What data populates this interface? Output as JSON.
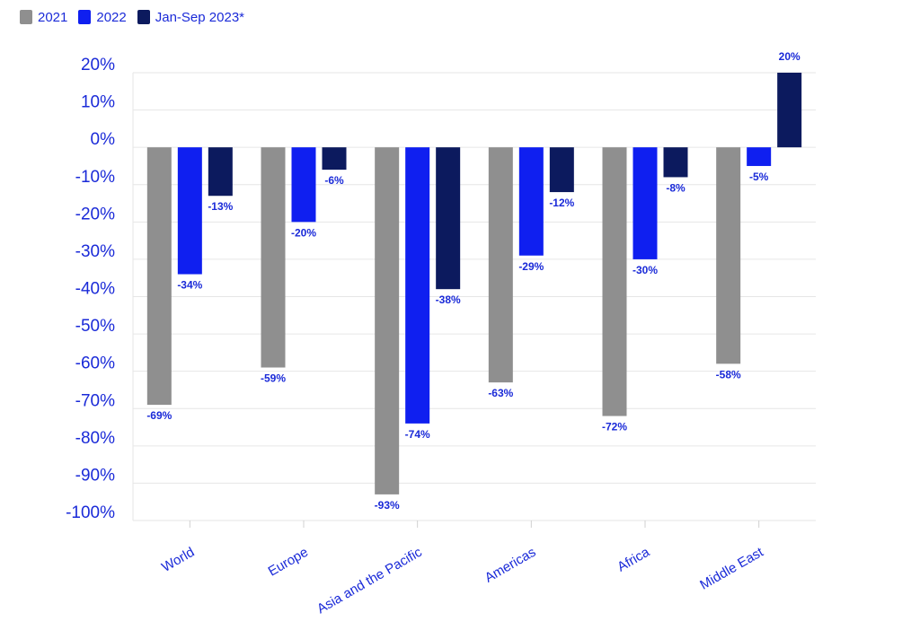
{
  "legend": [
    {
      "label": "2021",
      "color": "#8f8f8f"
    },
    {
      "label": "2022",
      "color": "#0f1ff0"
    },
    {
      "label": "Jan-Sep 2023*",
      "color": "#0c1a5e"
    }
  ],
  "chart_data": {
    "type": "bar",
    "title": "",
    "xlabel": "",
    "ylabel": "",
    "ylim": [
      -100,
      20
    ],
    "yticks": [
      "20%",
      "10%",
      "0%",
      "-10%",
      "-20%",
      "-30%",
      "-40%",
      "-50%",
      "-60%",
      "-70%",
      "-80%",
      "-90%",
      "-100%"
    ],
    "grid": true,
    "legend_position": "top-left",
    "categories": [
      "World",
      "Europe",
      "Asia and the Pacific",
      "Americas",
      "Africa",
      "Middle East"
    ],
    "series": [
      {
        "name": "2021",
        "color": "#8f8f8f",
        "values": [
          -69,
          -59,
          -93,
          -63,
          -72,
          -58
        ],
        "labels": [
          "-69%",
          "-59%",
          "-93%",
          "-63%",
          "-72%",
          "-58%"
        ]
      },
      {
        "name": "2022",
        "color": "#0f1ff0",
        "values": [
          -34,
          -20,
          -74,
          -29,
          -30,
          -5
        ],
        "labels": [
          "-34%",
          "-20%",
          "-74%",
          "-29%",
          "-30%",
          "-5%"
        ]
      },
      {
        "name": "Jan-Sep 2023*",
        "color": "#0c1a5e",
        "values": [
          -13,
          -6,
          -38,
          -12,
          -8,
          20
        ],
        "labels": [
          "-13%",
          "-6%",
          "-38%",
          "-12%",
          "-8%",
          "20%"
        ]
      }
    ]
  }
}
